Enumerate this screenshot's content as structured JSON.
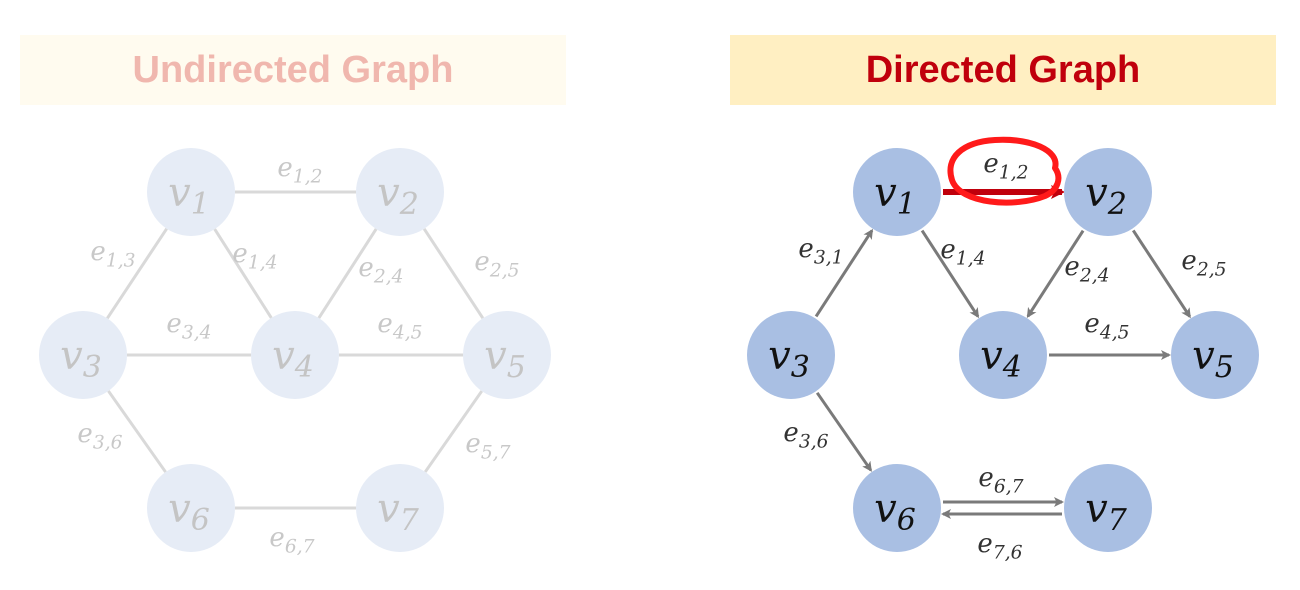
{
  "left_title": "Undirected Graph",
  "right_title": "Directed Graph",
  "undirected": {
    "nodes": [
      {
        "id": "1",
        "label": "v",
        "sub": "1"
      },
      {
        "id": "2",
        "label": "v",
        "sub": "2"
      },
      {
        "id": "3",
        "label": "v",
        "sub": "3"
      },
      {
        "id": "4",
        "label": "v",
        "sub": "4"
      },
      {
        "id": "5",
        "label": "v",
        "sub": "5"
      },
      {
        "id": "6",
        "label": "v",
        "sub": "6"
      },
      {
        "id": "7",
        "label": "v",
        "sub": "7"
      }
    ],
    "edges": [
      {
        "from": "1",
        "to": "2",
        "label": "e",
        "sub": "1,2"
      },
      {
        "from": "1",
        "to": "3",
        "label": "e",
        "sub": "1,3"
      },
      {
        "from": "1",
        "to": "4",
        "label": "e",
        "sub": "1,4"
      },
      {
        "from": "2",
        "to": "4",
        "label": "e",
        "sub": "2,4"
      },
      {
        "from": "2",
        "to": "5",
        "label": "e",
        "sub": "2,5"
      },
      {
        "from": "3",
        "to": "4",
        "label": "e",
        "sub": "3,4"
      },
      {
        "from": "4",
        "to": "5",
        "label": "e",
        "sub": "4,5"
      },
      {
        "from": "3",
        "to": "6",
        "label": "e",
        "sub": "3,6"
      },
      {
        "from": "5",
        "to": "7",
        "label": "e",
        "sub": "5,7"
      },
      {
        "from": "6",
        "to": "7",
        "label": "e",
        "sub": "6,7"
      }
    ]
  },
  "directed": {
    "nodes": [
      {
        "id": "1",
        "label": "v",
        "sub": "1"
      },
      {
        "id": "2",
        "label": "v",
        "sub": "2"
      },
      {
        "id": "3",
        "label": "v",
        "sub": "3"
      },
      {
        "id": "4",
        "label": "v",
        "sub": "4"
      },
      {
        "id": "5",
        "label": "v",
        "sub": "5"
      },
      {
        "id": "6",
        "label": "v",
        "sub": "6"
      },
      {
        "id": "7",
        "label": "v",
        "sub": "7"
      }
    ],
    "edges": [
      {
        "from": "1",
        "to": "2",
        "label": "e",
        "sub": "1,2",
        "highlight": true
      },
      {
        "from": "3",
        "to": "1",
        "label": "e",
        "sub": "3,1"
      },
      {
        "from": "1",
        "to": "4",
        "label": "e",
        "sub": "1,4"
      },
      {
        "from": "2",
        "to": "4",
        "label": "e",
        "sub": "2,4"
      },
      {
        "from": "2",
        "to": "5",
        "label": "e",
        "sub": "2,5"
      },
      {
        "from": "4",
        "to": "5",
        "label": "e",
        "sub": "4,5"
      },
      {
        "from": "3",
        "to": "6",
        "label": "e",
        "sub": "3,6"
      },
      {
        "from": "6",
        "to": "7",
        "label": "e",
        "sub": "6,7"
      },
      {
        "from": "7",
        "to": "6",
        "label": "e",
        "sub": "7,6"
      }
    ]
  },
  "colors": {
    "node_faded": "#e6ecf6",
    "node_text_faded": "#c4c4c4",
    "edge_faded": "#d9d9d9",
    "label_faded": "#c8c8c8",
    "node": "#a9bfe3",
    "node_text": "#111111",
    "edge": "#7a7a7a",
    "label": "#333333",
    "highlight_edge": "#c0000c",
    "highlight_circle": "#ff1a1a"
  }
}
